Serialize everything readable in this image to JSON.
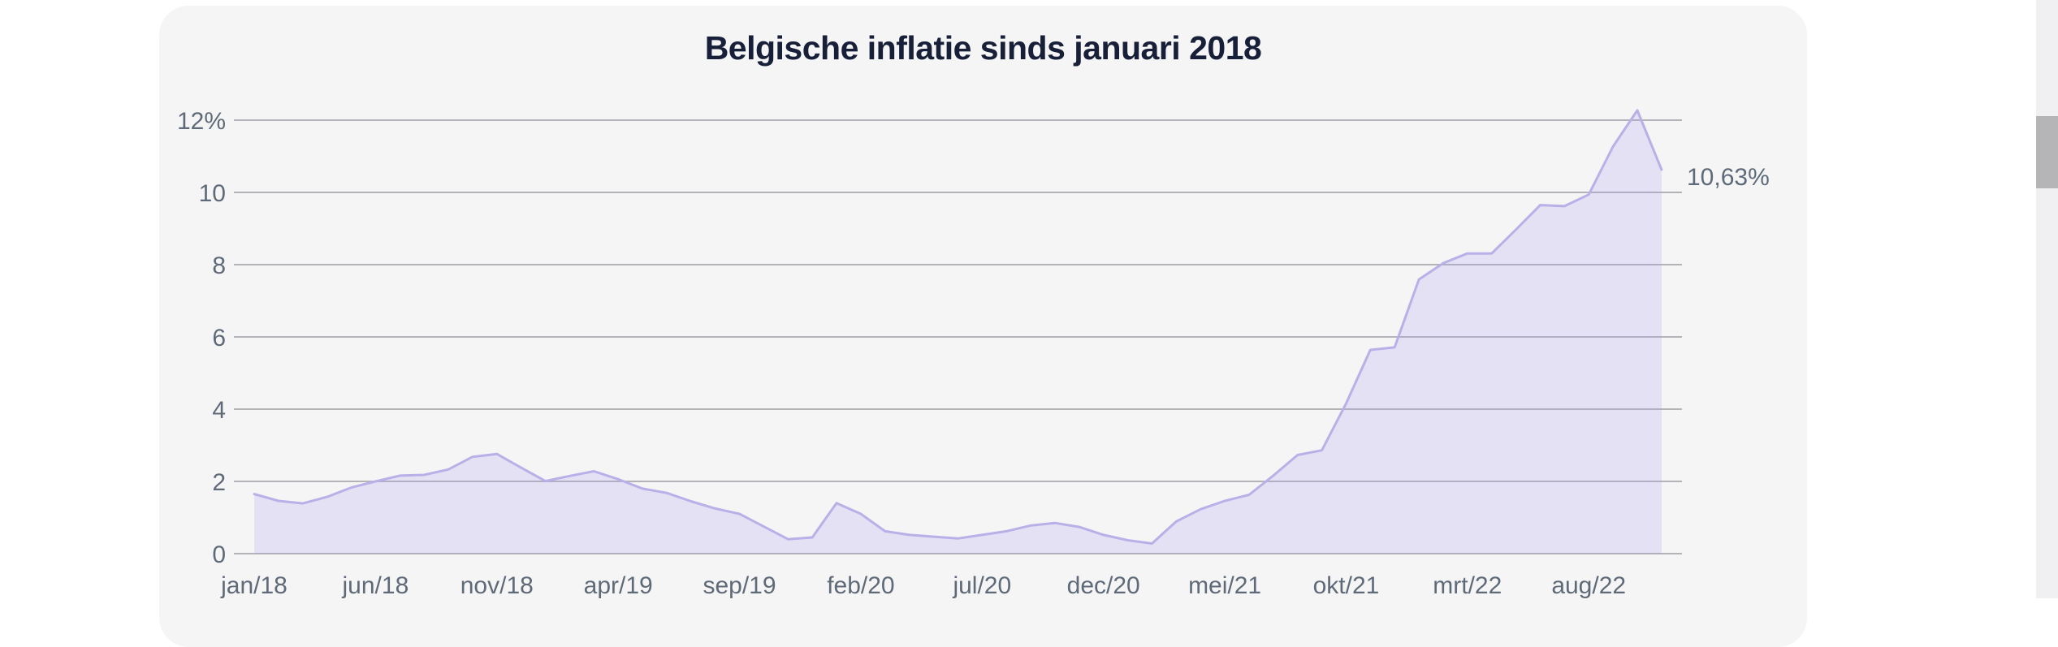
{
  "page": {
    "background": "#ffffff"
  },
  "card": {
    "background": "#f6f5f6"
  },
  "chart_data": {
    "type": "area",
    "title": "Belgische inflatie sinds januari 2018",
    "unit": "%",
    "ylim": [
      0,
      12
    ],
    "y_tick_step": 2,
    "grid": "horizontal",
    "legend": "none",
    "y_tick_labels": [
      "12%",
      "10",
      "8",
      "6",
      "4",
      "2",
      "0"
    ],
    "y_tick_values": [
      12,
      10,
      8,
      6,
      4,
      2,
      0
    ],
    "x_tick_labels": [
      "jan/18",
      "jun/18",
      "nov/18",
      "apr/19",
      "sep/19",
      "feb/20",
      "jul/20",
      "dec/20",
      "mei/21",
      "okt/21",
      "mrt/22",
      "aug/22"
    ],
    "x_tick_indices": [
      0,
      5,
      10,
      15,
      20,
      25,
      30,
      35,
      40,
      45,
      50,
      55
    ],
    "x": [
      "jan/18",
      "feb/18",
      "mrt/18",
      "apr/18",
      "mei/18",
      "jun/18",
      "jul/18",
      "aug/18",
      "sep/18",
      "okt/18",
      "nov/18",
      "dec/18",
      "jan/19",
      "feb/19",
      "mrt/19",
      "apr/19",
      "mei/19",
      "jun/19",
      "jul/19",
      "aug/19",
      "sep/19",
      "okt/19",
      "nov/19",
      "dec/19",
      "jan/20",
      "feb/20",
      "mrt/20",
      "apr/20",
      "mei/20",
      "jun/20",
      "jul/20",
      "aug/20",
      "sep/20",
      "okt/20",
      "nov/20",
      "dec/20",
      "jan/21",
      "feb/21",
      "mrt/21",
      "apr/21",
      "mei/21",
      "jun/21",
      "jul/21",
      "aug/21",
      "sep/21",
      "okt/21",
      "nov/21",
      "dec/21",
      "jan/22",
      "feb/22",
      "mrt/22",
      "apr/22",
      "mei/22",
      "jun/22",
      "jul/22",
      "aug/22",
      "sep/22",
      "okt/22",
      "nov/22"
    ],
    "values": [
      1.65,
      1.46,
      1.39,
      1.57,
      1.83,
      2.0,
      2.16,
      2.18,
      2.33,
      2.68,
      2.76,
      2.38,
      2.01,
      2.15,
      2.28,
      2.06,
      1.8,
      1.68,
      1.45,
      1.25,
      1.1,
      0.75,
      0.4,
      0.45,
      1.4,
      1.1,
      0.62,
      0.52,
      0.47,
      0.42,
      0.52,
      0.62,
      0.78,
      0.85,
      0.74,
      0.52,
      0.37,
      0.28,
      0.89,
      1.23,
      1.46,
      1.63,
      2.16,
      2.73,
      2.86,
      4.16,
      5.64,
      5.71,
      7.59,
      8.04,
      8.31,
      8.31,
      8.97,
      9.65,
      9.62,
      9.94,
      11.27,
      12.27,
      10.63
    ],
    "end_label": "10,63%",
    "colors": {
      "area_fill": "rgba(162,151,236,0.21)",
      "line": "#b8b1e8",
      "grid": "#b4b4b8",
      "axis_text": "#5f6a79",
      "title_text": "#171f39",
      "annotation_text": "#5d6a7a"
    }
  },
  "scrollbar": {
    "track_color": "#f0eff1",
    "thumb_color": "#b5b4b6"
  }
}
